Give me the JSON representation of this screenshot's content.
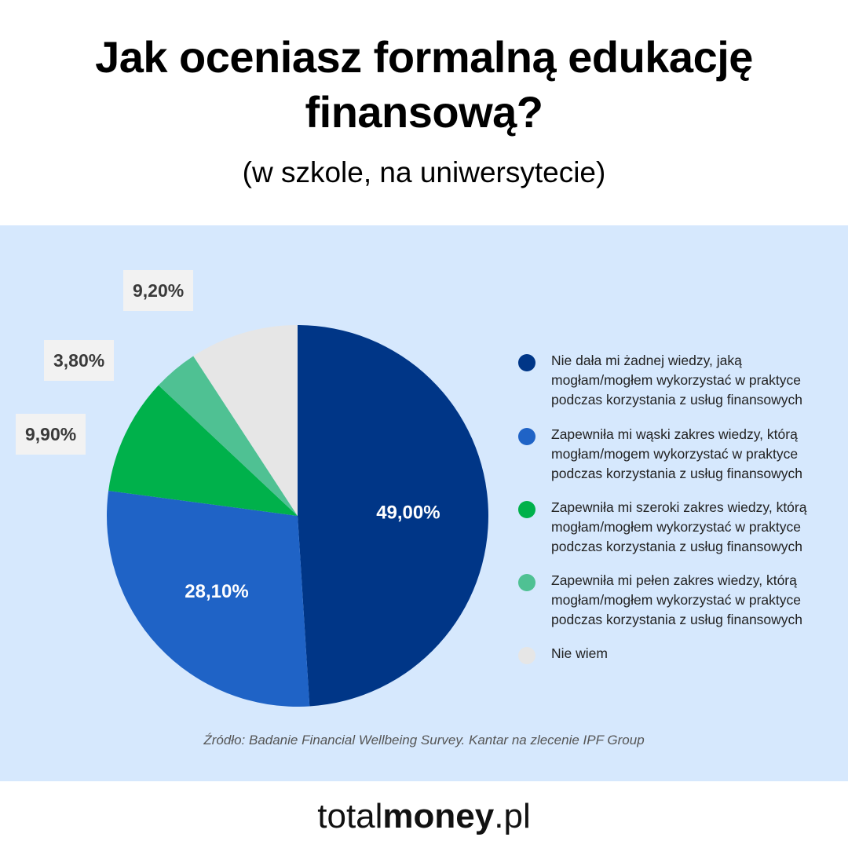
{
  "header": {
    "title_line1": "Jak oceniasz formalną edukację",
    "title_line2": "finansową?",
    "subtitle": "(w szkole, na uniwersytecie)"
  },
  "chart_data": {
    "type": "pie",
    "start_angle_deg": 0,
    "direction": "clockwise",
    "categories": [
      "Nie dała mi żadnej wiedzy, jaką mogłam/mogłem wykorzystać w praktyce podczas korzystania z usług finansowych",
      "Zapewniła mi wąski zakres wiedzy, którą mogłam/mogem wykorzystać w praktyce podczas korzystania z usług finansowych",
      "Zapewniła mi szeroki zakres wiedzy, którą mogłam/mogłem wykorzystać w praktyce podczas korzystania z usług finansowych",
      "Zapewniła mi pełen zakres wiedzy, którą mogłam/mogłem wykorzystać w praktyce podczas korzystania z usług finansowych",
      "Nie wiem"
    ],
    "values": [
      49.0,
      28.1,
      9.9,
      3.8,
      9.2
    ],
    "labels": [
      "49,00%",
      "28,10%",
      "9,90%",
      "3,80%",
      "9,20%"
    ],
    "colors": [
      "#003687",
      "#1f63c6",
      "#00b14b",
      "#4fc193",
      "#e6e6e6"
    ],
    "background_color": "#d6e8fd",
    "legend": {
      "placement": "right",
      "items": [
        {
          "lines": [
            "Nie dała mi żadnej wiedzy, jaką",
            "mogłam/mogłem wykorzystać w praktyce",
            "podczas korzystania z usług finansowych"
          ]
        },
        {
          "lines": [
            "Zapewniła mi wąski zakres wiedzy, którą",
            "mogłam/mogem wykorzystać w praktyce",
            "podczas korzystania z usług finansowych"
          ]
        },
        {
          "lines": [
            "Zapewniła mi szeroki zakres wiedzy, którą",
            "mogłam/mogłem wykorzystać w praktyce",
            "podczas korzystania z usług finansowych"
          ]
        },
        {
          "lines": [
            "Zapewniła mi pełen zakres wiedzy, którą",
            "mogłam/mogłem wykorzystać w praktyce",
            "podczas korzystania z usług finansowych"
          ]
        },
        {
          "lines": [
            "Nie wiem"
          ]
        }
      ]
    }
  },
  "source": "Źródło: Badanie Financial Wellbeing Survey. Kantar na zlecenie IPF Group",
  "brand": {
    "prefix": "total",
    "bold": "money",
    "suffix": ".pl"
  }
}
